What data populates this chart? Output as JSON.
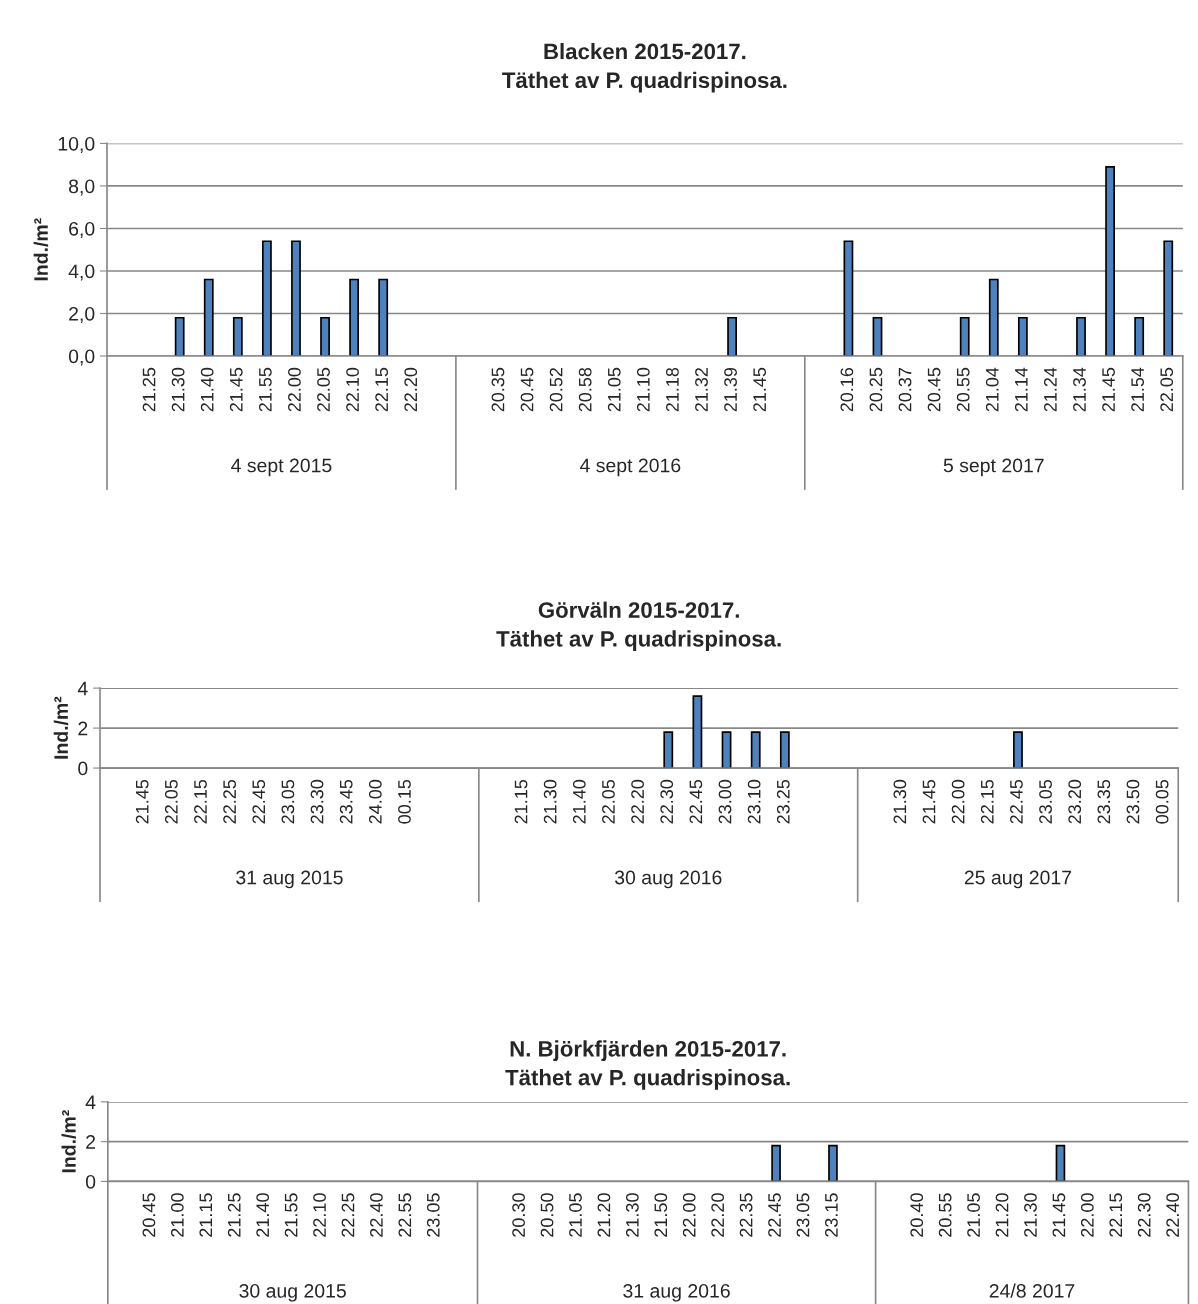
{
  "chart_data": [
    {
      "type": "bar",
      "title": "Blacken 2015-2017.\nTäthet av P. quadrispinosa.",
      "ylabel": "Ind./m²",
      "categories": [
        null,
        "21.25",
        "21.30",
        "21.40",
        "21.45",
        "21.55",
        "22.00",
        "22.05",
        "22.10",
        "22.15",
        "22.20",
        null,
        null,
        "20.35",
        "20.45",
        "20.52",
        "20.58",
        "21.05",
        "21.10",
        "21.18",
        "21.32",
        "21.39",
        "21.45",
        null,
        null,
        "20.16",
        "20.25",
        "20.37",
        "20.45",
        "20.55",
        "21.04",
        "21.14",
        "21.24",
        "21.34",
        "21.45",
        "21.54",
        "22.05"
      ],
      "values": [
        null,
        0,
        1.8,
        3.6,
        1.8,
        5.4,
        5.4,
        1.8,
        3.6,
        3.6,
        0,
        null,
        null,
        0,
        0,
        0,
        0,
        0,
        0,
        0,
        0,
        1.8,
        0,
        null,
        null,
        5.4,
        1.8,
        0,
        0,
        1.8,
        3.6,
        1.8,
        0,
        1.8,
        8.9,
        1.8,
        5.4
      ],
      "color": "#4f81bd",
      "ylim": [
        0,
        10
      ],
      "yticks": [
        {
          "value": 0,
          "label": "0,0"
        },
        {
          "value": 2,
          "label": "2,0"
        },
        {
          "value": 4,
          "label": "4,0"
        },
        {
          "value": 6,
          "label": "6,0"
        },
        {
          "value": 8,
          "label": "8,0"
        },
        {
          "value": 10,
          "label": "10,0"
        }
      ],
      "grid": "y",
      "annotations": [
        "4 sept 2015",
        "4 sept 2016",
        "5 sept 2017"
      ]
    },
    {
      "type": "bar",
      "title": "Görväln 2015-2017.\nTäthet av P. quadrispinosa.",
      "ylabel": "Ind./m²",
      "categories": [
        null,
        "21.45",
        "22.05",
        "22.15",
        "22.25",
        "22.45",
        "23.05",
        "23.30",
        "23.45",
        "24.00",
        "00.15",
        null,
        null,
        null,
        "21.15",
        "21.30",
        "21.40",
        "22.05",
        "22.20",
        "22.30",
        "22.45",
        "23.00",
        "23.10",
        "23.25",
        null,
        null,
        null,
        "21.30",
        "21.45",
        "22.00",
        "22.15",
        "22.45",
        "23.05",
        "23.20",
        "23.35",
        "23.50",
        "00.05"
      ],
      "values": [
        null,
        0,
        0,
        0,
        0,
        0,
        0,
        0,
        0,
        0,
        0,
        null,
        null,
        null,
        0,
        0,
        0,
        0,
        0,
        1.8,
        3.6,
        1.8,
        1.8,
        1.8,
        null,
        null,
        null,
        0,
        0,
        0,
        0,
        1.8,
        0,
        0,
        0,
        0,
        0
      ],
      "color": "#4f81bd",
      "ylim": [
        0,
        4
      ],
      "yticks": [
        0,
        2,
        4
      ],
      "grid": "y",
      "annotations": [
        "31 aug 2015",
        "30 aug 2016",
        "25 aug 2017"
      ]
    },
    {
      "type": "bar",
      "title": "N. Björkfjärden 2015-2017.\nTäthet av P. quadrispinosa.",
      "ylabel": "Ind./m²",
      "categories": [
        null,
        "20.45",
        "21.00",
        "21.15",
        "21.25",
        "21.40",
        "21.55",
        "22.10",
        "22.25",
        "22.40",
        "22.55",
        "23.05",
        null,
        null,
        "20.30",
        "20.50",
        "21.05",
        "21.20",
        "21.30",
        "21.50",
        "22.00",
        "22.20",
        "22.35",
        "22.45",
        "23.05",
        "23.15",
        null,
        null,
        "20.40",
        "20.55",
        "21.05",
        "21.20",
        "21.30",
        "21.45",
        "22.00",
        "22.15",
        "22.30",
        "22.40"
      ],
      "values": [
        null,
        0,
        0,
        0,
        0,
        0,
        0,
        0,
        0,
        0,
        0,
        0,
        null,
        null,
        0,
        0,
        0,
        0,
        0,
        0,
        0,
        0,
        0,
        1.8,
        0,
        1.8,
        null,
        null,
        0,
        0,
        0,
        0,
        0,
        1.8,
        0,
        0,
        0,
        0
      ],
      "color": "#4f81bd",
      "ylim": [
        0,
        4
      ],
      "yticks": [
        0,
        2,
        4
      ],
      "grid": "y",
      "annotations": [
        "30 aug 2015",
        "31 aug 2016",
        "24/8 2017"
      ]
    }
  ]
}
